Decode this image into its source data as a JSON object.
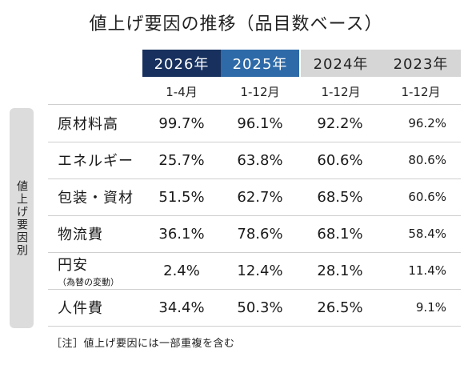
{
  "title": "値上げ要因の推移（品目数ベース）",
  "side_label": "値上げ要因別",
  "colors": {
    "y2026_bg": "#17305e",
    "y2025_bg": "#2e6aa8",
    "older_bg": "#d6d6d6"
  },
  "columns": [
    {
      "year": "2026年",
      "period": "1-4月"
    },
    {
      "year": "2025年",
      "period": "1-12月"
    },
    {
      "year": "2024年",
      "period": "1-12月"
    },
    {
      "year": "2023年",
      "period": "1-12月"
    }
  ],
  "rows": [
    {
      "label": "原材料高",
      "sub": "",
      "values": [
        "99.7%",
        "96.1%",
        "92.2%",
        "96.2%"
      ]
    },
    {
      "label": "エネルギー",
      "sub": "",
      "values": [
        "25.7%",
        "63.8%",
        "60.6%",
        "80.6%"
      ]
    },
    {
      "label": "包装・資材",
      "sub": "",
      "values": [
        "51.5%",
        "62.7%",
        "68.5%",
        "60.6%"
      ]
    },
    {
      "label": "物流費",
      "sub": "",
      "values": [
        "36.1%",
        "78.6%",
        "68.1%",
        "58.4%"
      ]
    },
    {
      "label": "円安",
      "sub": "（為替の変動）",
      "values": [
        "2.4%",
        "12.4%",
        "28.1%",
        "11.4%"
      ]
    },
    {
      "label": "人件費",
      "sub": "",
      "values": [
        "34.4%",
        "50.3%",
        "26.5%",
        "9.1%"
      ]
    }
  ],
  "note": "［注］値上げ要因には一部重複を含む"
}
